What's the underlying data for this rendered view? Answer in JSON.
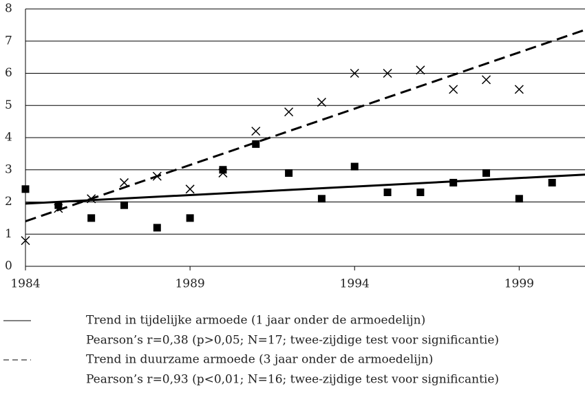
{
  "chart_data": {
    "type": "scatter",
    "xlim": [
      1984,
      2001
    ],
    "xticks": [
      1984,
      1989,
      1994,
      1999
    ],
    "ylim": [
      0,
      8
    ],
    "yticks": [
      0,
      1,
      2,
      3,
      4,
      5,
      6,
      7,
      8
    ],
    "grid": true,
    "series": [
      {
        "type": "scatter",
        "marker": "square",
        "color": "#000000",
        "x": [
          1984,
          1985,
          1986,
          1987,
          1988,
          1989,
          1990,
          1991,
          1992,
          1993,
          1994,
          1995,
          1996,
          1997,
          1998,
          1999,
          2000
        ],
        "values": [
          2.4,
          1.9,
          1.5,
          1.9,
          1.2,
          1.5,
          3.0,
          3.8,
          2.9,
          2.1,
          3.1,
          2.3,
          2.3,
          2.6,
          2.9,
          2.1,
          2.6
        ]
      },
      {
        "type": "scatter",
        "marker": "cross",
        "color": "#000000",
        "x": [
          1984,
          1985,
          1986,
          1987,
          1988,
          1989,
          1990,
          1991,
          1992,
          1993,
          1994,
          1995,
          1996,
          1997,
          1998,
          1999
        ],
        "values": [
          0.8,
          1.8,
          2.1,
          2.6,
          2.8,
          2.4,
          2.9,
          4.2,
          4.8,
          5.1,
          6.0,
          6.0,
          6.1,
          5.5,
          5.8,
          5.5
        ]
      },
      {
        "type": "line",
        "dashed": false,
        "color": "#000000",
        "name": "Trend in tijdelijke armoede (1 jaar onder de armoedelijn)",
        "note": "Pearson’s r=0,38 (p>0,05; N=17; twee-zijdige test voor significantie)",
        "x": [
          1984,
          2001
        ],
        "values": [
          1.95,
          2.85
        ]
      },
      {
        "type": "line",
        "dashed": true,
        "color": "#000000",
        "name": "Trend in duurzame armoede (3 jaar onder de armoedelijn)",
        "note": "Pearson’s r=0,93 (p<0,01; N=16; twee-zijdige test voor significantie)",
        "x": [
          1984,
          2001
        ],
        "values": [
          1.4,
          7.35
        ]
      }
    ]
  }
}
